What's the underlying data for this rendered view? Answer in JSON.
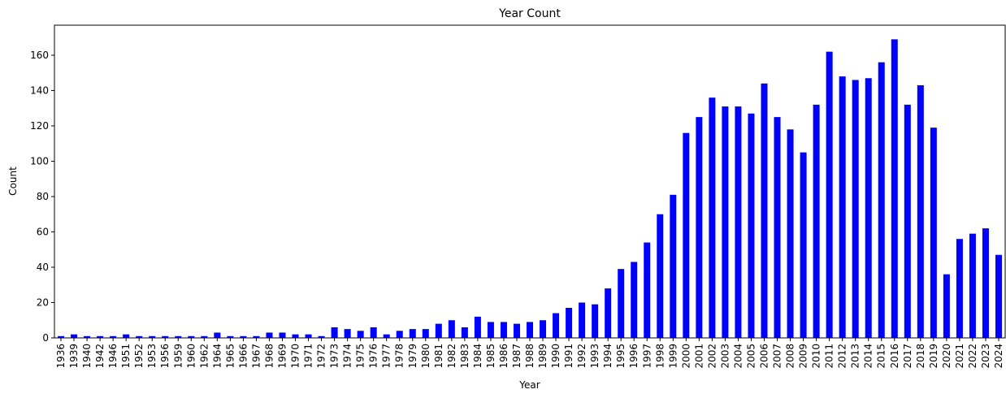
{
  "chart_data": {
    "type": "bar",
    "title": "Year Count",
    "xlabel": "Year",
    "ylabel": "Count",
    "ylim": [
      0,
      177
    ],
    "yticks": [
      0,
      20,
      40,
      60,
      80,
      100,
      120,
      140,
      160
    ],
    "grid": false,
    "bar_color": "#0000ff",
    "categories": [
      "1936",
      "1939",
      "1940",
      "1942",
      "1946",
      "1951",
      "1952",
      "1953",
      "1956",
      "1959",
      "1960",
      "1962",
      "1964",
      "1965",
      "1966",
      "1967",
      "1968",
      "1969",
      "1970",
      "1971",
      "1972",
      "1973",
      "1974",
      "1975",
      "1976",
      "1977",
      "1978",
      "1979",
      "1980",
      "1981",
      "1982",
      "1983",
      "1984",
      "1985",
      "1986",
      "1987",
      "1988",
      "1989",
      "1990",
      "1991",
      "1992",
      "1993",
      "1994",
      "1995",
      "1996",
      "1997",
      "1998",
      "1999",
      "2000",
      "2001",
      "2002",
      "2003",
      "2004",
      "2005",
      "2006",
      "2007",
      "2008",
      "2009",
      "2010",
      "2011",
      "2012",
      "2013",
      "2014",
      "2015",
      "2016",
      "2017",
      "2018",
      "2019",
      "2020",
      "2021",
      "2022",
      "2023",
      "2024"
    ],
    "values": [
      1,
      2,
      1,
      1,
      1,
      2,
      1,
      1,
      1,
      1,
      1,
      1,
      3,
      1,
      1,
      1,
      3,
      3,
      2,
      2,
      1,
      6,
      5,
      4,
      6,
      2,
      4,
      5,
      5,
      8,
      10,
      6,
      12,
      9,
      9,
      8,
      9,
      10,
      14,
      17,
      20,
      19,
      28,
      39,
      43,
      54,
      70,
      81,
      116,
      125,
      136,
      131,
      131,
      127,
      144,
      125,
      118,
      105,
      132,
      162,
      148,
      146,
      147,
      156,
      169,
      132,
      143,
      119,
      36,
      56,
      59,
      62,
      47
    ]
  }
}
